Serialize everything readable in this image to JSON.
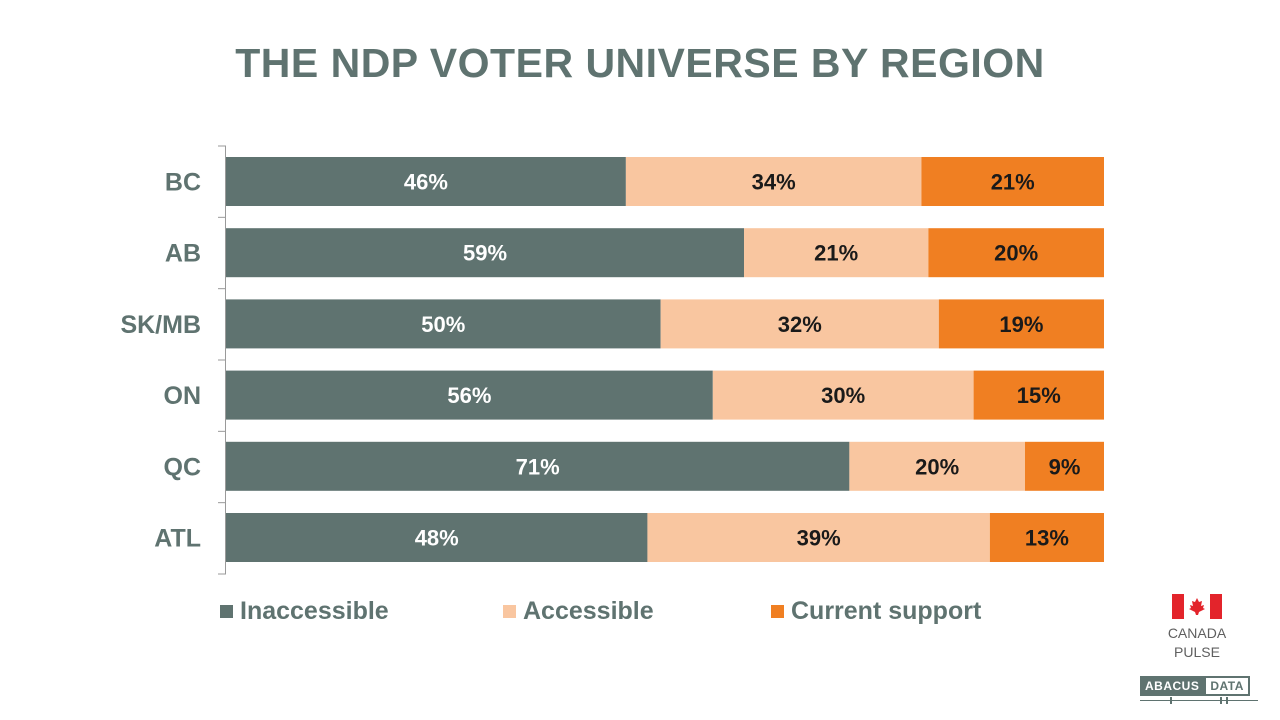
{
  "title": "THE NDP VOTER UNIVERSE BY REGION",
  "chart_data": {
    "type": "bar",
    "orientation": "horizontal",
    "stacked": true,
    "title": "THE NDP VOTER UNIVERSE BY REGION",
    "categories": [
      "BC",
      "AB",
      "SK/MB",
      "ON",
      "QC",
      "ATL"
    ],
    "series": [
      {
        "name": "Inaccessible",
        "values": [
          46,
          59,
          50,
          56,
          71,
          48
        ],
        "color": "#5f7370",
        "label_color": "#ffffff"
      },
      {
        "name": "Accessible",
        "values": [
          34,
          21,
          32,
          30,
          20,
          39
        ],
        "color": "#f9c6a0",
        "label_color": "#1a1a1a"
      },
      {
        "name": "Current support",
        "values": [
          21,
          20,
          19,
          15,
          9,
          13
        ],
        "color": "#f07f22",
        "label_color": "#1a1a1a"
      }
    ],
    "value_suffix": "%",
    "legend_position": "bottom",
    "grid": false
  },
  "branding": {
    "flag_icon": "canada-flag-icon",
    "canada_line1": "CANADA",
    "canada_line2": "PULSE",
    "abacus_left": "ABACUS",
    "abacus_right": "DATA"
  }
}
